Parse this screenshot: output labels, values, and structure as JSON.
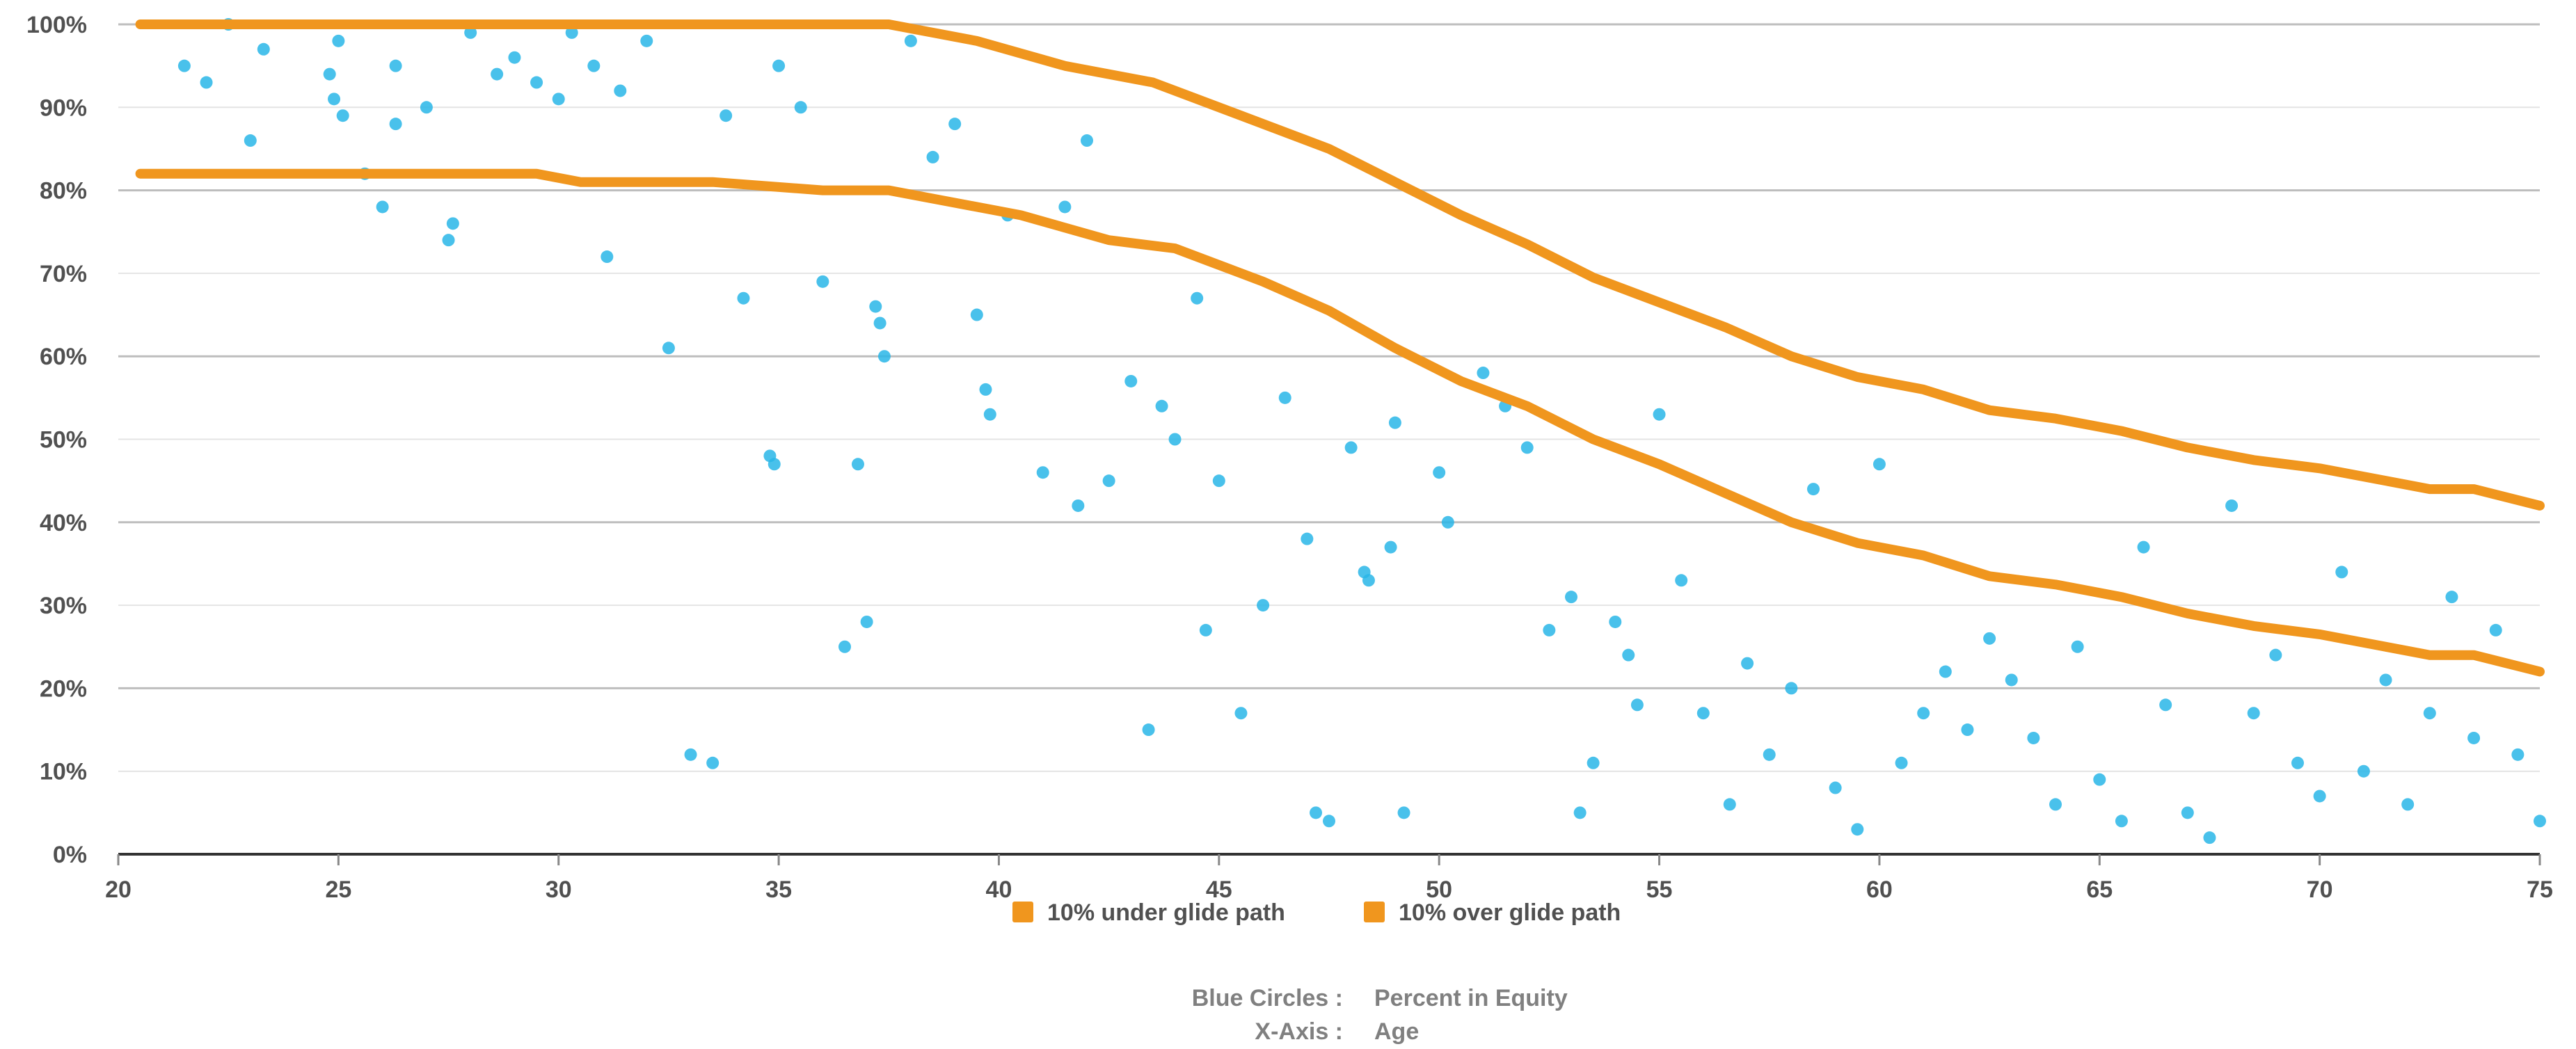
{
  "chart_data": {
    "type": "scatter",
    "xlim": [
      20,
      75
    ],
    "ylim": [
      0,
      100
    ],
    "x_ticks": [
      20,
      25,
      30,
      35,
      40,
      45,
      50,
      55,
      60,
      65,
      70,
      75
    ],
    "x_tick_labels": [
      "20",
      "25",
      "30",
      "35",
      "40",
      "45",
      "50",
      "55",
      "60",
      "65",
      "70",
      "75"
    ],
    "y_ticks": [
      0,
      10,
      20,
      30,
      40,
      50,
      60,
      70,
      80,
      90,
      100
    ],
    "y_tick_labels": [
      "0%",
      "10%",
      "20%",
      "30%",
      "40%",
      "50%",
      "60%",
      "70%",
      "80%",
      "90%",
      "100%"
    ],
    "grid": true,
    "legend_position": "bottom-center",
    "colors": {
      "points": "#29b6e8",
      "glide_lines": "#f0961e",
      "axis": "#333333",
      "grid_major": "#bdbdbd",
      "grid_minor": "#e4e4e4"
    },
    "scatter": {
      "name": "Blue Circles",
      "approx_points": [
        [
          21.5,
          95
        ],
        [
          22,
          93
        ],
        [
          22.5,
          100
        ],
        [
          23,
          86
        ],
        [
          23.3,
          97
        ],
        [
          24.8,
          94
        ],
        [
          24.9,
          91
        ],
        [
          25,
          98
        ],
        [
          25.1,
          89
        ],
        [
          25.6,
          82
        ],
        [
          26,
          78
        ],
        [
          26.3,
          95
        ],
        [
          26.3,
          88
        ],
        [
          27,
          90
        ],
        [
          27.5,
          74
        ],
        [
          27.6,
          76
        ],
        [
          28,
          99
        ],
        [
          28.6,
          94
        ],
        [
          29,
          96
        ],
        [
          29.5,
          93
        ],
        [
          30,
          91
        ],
        [
          30.3,
          99
        ],
        [
          30.8,
          95
        ],
        [
          31.1,
          72
        ],
        [
          31.4,
          92
        ],
        [
          32,
          98
        ],
        [
          32.5,
          61
        ],
        [
          33,
          12
        ],
        [
          33.5,
          11
        ],
        [
          33.8,
          89
        ],
        [
          34.2,
          67
        ],
        [
          34.8,
          48
        ],
        [
          34.9,
          47
        ],
        [
          35,
          95
        ],
        [
          35.5,
          90
        ],
        [
          36,
          69
        ],
        [
          36.5,
          25
        ],
        [
          36.8,
          47
        ],
        [
          37,
          28
        ],
        [
          37.2,
          66
        ],
        [
          37.3,
          64
        ],
        [
          37.4,
          60
        ],
        [
          38,
          98
        ],
        [
          38.5,
          84
        ],
        [
          39,
          88
        ],
        [
          39.5,
          65
        ],
        [
          39.7,
          56
        ],
        [
          39.8,
          53
        ],
        [
          40.2,
          77
        ],
        [
          41,
          46
        ],
        [
          41.5,
          78
        ],
        [
          41.8,
          42
        ],
        [
          42,
          86
        ],
        [
          42.5,
          45
        ],
        [
          43,
          57
        ],
        [
          43.4,
          15
        ],
        [
          43.7,
          54
        ],
        [
          44,
          50
        ],
        [
          44.5,
          67
        ],
        [
          44.7,
          27
        ],
        [
          45,
          45
        ],
        [
          45.5,
          17
        ],
        [
          46,
          30
        ],
        [
          46.5,
          55
        ],
        [
          47,
          38
        ],
        [
          47.2,
          5
        ],
        [
          47.5,
          4
        ],
        [
          48,
          49
        ],
        [
          48.3,
          34
        ],
        [
          48.4,
          33
        ],
        [
          48.9,
          37
        ],
        [
          49,
          52
        ],
        [
          49.2,
          5
        ],
        [
          50,
          46
        ],
        [
          50.2,
          40
        ],
        [
          51,
          58
        ],
        [
          51.5,
          54
        ],
        [
          52,
          49
        ],
        [
          52.5,
          27
        ],
        [
          53,
          31
        ],
        [
          53.2,
          5
        ],
        [
          53.5,
          11
        ],
        [
          54,
          28
        ],
        [
          54.3,
          24
        ],
        [
          54.5,
          18
        ],
        [
          55,
          53
        ],
        [
          55.5,
          33
        ],
        [
          56,
          17
        ],
        [
          56.6,
          6
        ],
        [
          57,
          23
        ],
        [
          57.5,
          12
        ],
        [
          58,
          20
        ],
        [
          58.5,
          44
        ],
        [
          59,
          8
        ],
        [
          59.5,
          3
        ],
        [
          60,
          47
        ],
        [
          60.5,
          11
        ],
        [
          61,
          17
        ],
        [
          61.5,
          22
        ],
        [
          62,
          15
        ],
        [
          62.5,
          26
        ],
        [
          63,
          21
        ],
        [
          63.5,
          14
        ],
        [
          64,
          6
        ],
        [
          64.5,
          25
        ],
        [
          65,
          9
        ],
        [
          65.5,
          4
        ],
        [
          66,
          37
        ],
        [
          66.5,
          18
        ],
        [
          67,
          5
        ],
        [
          67.5,
          2
        ],
        [
          68,
          42
        ],
        [
          68.5,
          17
        ],
        [
          69,
          24
        ],
        [
          69.5,
          11
        ],
        [
          70,
          7
        ],
        [
          70.5,
          34
        ],
        [
          71,
          10
        ],
        [
          71.5,
          21
        ],
        [
          72,
          6
        ],
        [
          72.5,
          17
        ],
        [
          73,
          31
        ],
        [
          73.5,
          14
        ],
        [
          74,
          27
        ],
        [
          74.5,
          12
        ],
        [
          75,
          4
        ]
      ]
    },
    "series": [
      {
        "name": "10% under glide path",
        "points": [
          [
            20.5,
            82
          ],
          [
            29.5,
            82
          ],
          [
            30.5,
            81
          ],
          [
            33.5,
            81
          ],
          [
            36,
            80
          ],
          [
            37.5,
            80
          ],
          [
            40.5,
            77
          ],
          [
            42.5,
            74
          ],
          [
            44,
            73
          ],
          [
            46,
            69
          ],
          [
            47.5,
            65.5
          ],
          [
            49,
            61
          ],
          [
            50.5,
            57
          ],
          [
            52,
            54
          ],
          [
            53.5,
            50
          ],
          [
            55,
            47
          ],
          [
            56.5,
            43.5
          ],
          [
            58,
            40
          ],
          [
            59.5,
            37.5
          ],
          [
            61,
            36
          ],
          [
            62.5,
            33.5
          ],
          [
            64,
            32.5
          ],
          [
            65.5,
            31
          ],
          [
            67,
            29
          ],
          [
            68.5,
            27.5
          ],
          [
            70,
            26.5
          ],
          [
            71.5,
            25
          ],
          [
            72.5,
            24
          ],
          [
            73.5,
            24
          ],
          [
            75,
            22
          ]
        ]
      },
      {
        "name": "10% over glide path",
        "points": [
          [
            20.5,
            100
          ],
          [
            37.5,
            100
          ],
          [
            39.5,
            98
          ],
          [
            41.5,
            95
          ],
          [
            43.5,
            93
          ],
          [
            45.5,
            89
          ],
          [
            47.5,
            85
          ],
          [
            49,
            81
          ],
          [
            50.5,
            77
          ],
          [
            52,
            73.5
          ],
          [
            53.5,
            69.5
          ],
          [
            55,
            66.5
          ],
          [
            56.5,
            63.5
          ],
          [
            58,
            60
          ],
          [
            59.5,
            57.5
          ],
          [
            61,
            56
          ],
          [
            62.5,
            53.5
          ],
          [
            64,
            52.5
          ],
          [
            65.5,
            51
          ],
          [
            67,
            49
          ],
          [
            68.5,
            47.5
          ],
          [
            70,
            46.5
          ],
          [
            71.5,
            45
          ],
          [
            72.5,
            44
          ],
          [
            73.5,
            44
          ],
          [
            75,
            42
          ]
        ]
      }
    ],
    "footer": [
      {
        "key": "Blue Circles :",
        "value": "Percent in Equity"
      },
      {
        "key": "X-Axis :",
        "value": "Age"
      }
    ]
  }
}
